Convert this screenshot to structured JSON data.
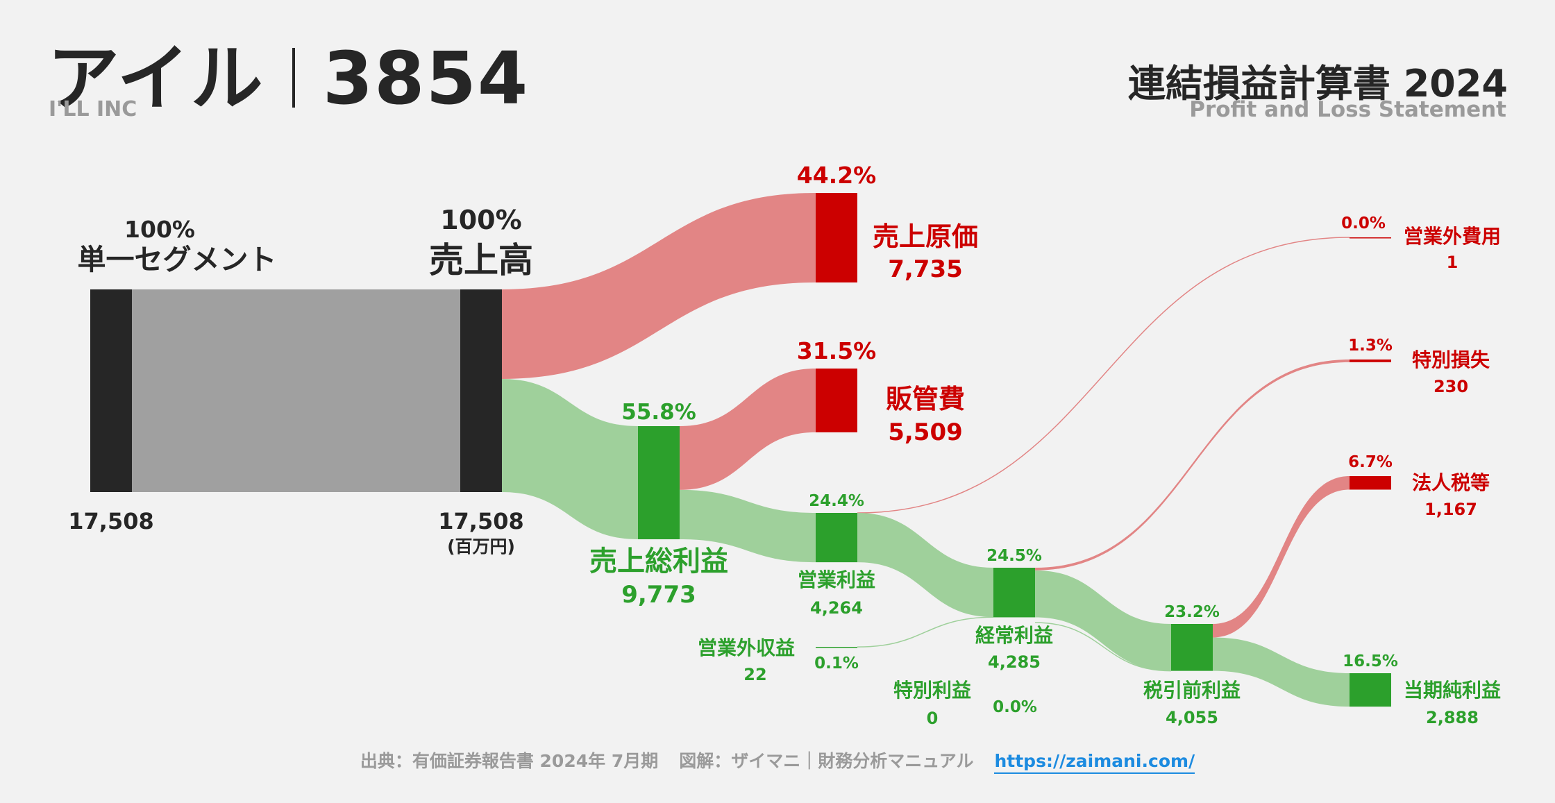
{
  "header": {
    "company_name": "アイル",
    "ticker": "3854",
    "company_name_en": "I'LL INC",
    "statement_title": "連結損益計算書 2024",
    "statement_subtitle": "Profit and Loss Statement"
  },
  "footer": {
    "source": "出典：有価証券報告書 2024年 7月期",
    "credit": "図解：ザイマニ｜財務分析マニュアル",
    "url": "https://zaimani.com/"
  },
  "colors": {
    "node_neutral": "#262626",
    "flow_neutral": "#a0a0a0",
    "profit": "#2ca02c",
    "profit_flow": "#9fd09b",
    "cost": "#cc0000",
    "cost_flow": "#e28585",
    "text_dark": "#262626"
  },
  "chart_data": {
    "type": "sankey",
    "unit": "(百万円)",
    "nodes": [
      {
        "id": "segment",
        "label": "単一セグメント",
        "value": "17,508",
        "pct": "100%",
        "kind": "neutral"
      },
      {
        "id": "revenue",
        "label": "売上高",
        "value": "17,508",
        "pct": "100%",
        "kind": "neutral"
      },
      {
        "id": "cogs",
        "label": "売上原価",
        "value": "7,735",
        "pct": "44.2%",
        "kind": "cost"
      },
      {
        "id": "gross_profit",
        "label": "売上総利益",
        "value": "9,773",
        "pct": "55.8%",
        "kind": "profit"
      },
      {
        "id": "sga",
        "label": "販管費",
        "value": "5,509",
        "pct": "31.5%",
        "kind": "cost"
      },
      {
        "id": "operating_profit",
        "label": "営業利益",
        "value": "4,264",
        "pct": "24.4%",
        "kind": "profit"
      },
      {
        "id": "non_op_income",
        "label": "営業外収益",
        "value": "22",
        "pct": "0.1%",
        "kind": "profit"
      },
      {
        "id": "non_op_expense",
        "label": "営業外費用",
        "value": "1",
        "pct": "0.0%",
        "kind": "cost"
      },
      {
        "id": "ordinary_profit",
        "label": "経常利益",
        "value": "4,285",
        "pct": "24.5%",
        "kind": "profit"
      },
      {
        "id": "extra_gain",
        "label": "特別利益",
        "value": "0",
        "pct": "0.0%",
        "kind": "profit"
      },
      {
        "id": "extra_loss",
        "label": "特別損失",
        "value": "230",
        "pct": "1.3%",
        "kind": "cost"
      },
      {
        "id": "pretax_profit",
        "label": "税引前利益",
        "value": "4,055",
        "pct": "23.2%",
        "kind": "profit"
      },
      {
        "id": "tax",
        "label": "法人税等",
        "value": "1,167",
        "pct": "6.7%",
        "kind": "cost"
      },
      {
        "id": "net_income",
        "label": "当期純利益",
        "value": "2,888",
        "pct": "16.5%",
        "kind": "profit"
      }
    ],
    "links": [
      {
        "source": "segment",
        "target": "revenue",
        "value": 17508
      },
      {
        "source": "revenue",
        "target": "cogs",
        "value": 7735
      },
      {
        "source": "revenue",
        "target": "gross_profit",
        "value": 9773
      },
      {
        "source": "gross_profit",
        "target": "sga",
        "value": 5509
      },
      {
        "source": "gross_profit",
        "target": "operating_profit",
        "value": 4264
      },
      {
        "source": "operating_profit",
        "target": "non_op_expense",
        "value": 1
      },
      {
        "source": "operating_profit",
        "target": "ordinary_profit",
        "value": 4264
      },
      {
        "source": "non_op_income",
        "target": "ordinary_profit",
        "value": 22
      },
      {
        "source": "ordinary_profit",
        "target": "extra_loss",
        "value": 230
      },
      {
        "source": "ordinary_profit",
        "target": "pretax_profit",
        "value": 4055
      },
      {
        "source": "extra_gain",
        "target": "pretax_profit",
        "value": 0
      },
      {
        "source": "pretax_profit",
        "target": "tax",
        "value": 1167
      },
      {
        "source": "pretax_profit",
        "target": "net_income",
        "value": 2888
      }
    ]
  }
}
